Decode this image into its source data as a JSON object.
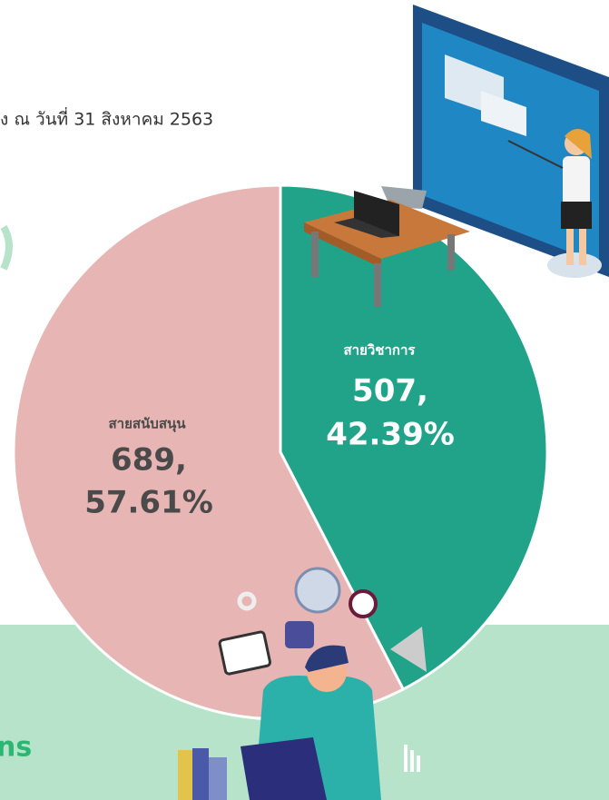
{
  "subtitle": "ง ณ วันที่ 31 สิงหาคม 2563",
  "footer_text": "ns",
  "chart_data": {
    "type": "pie",
    "categories": [
      "สายวิชาการ",
      "สายสนับสนุน"
    ],
    "values": [
      507,
      689
    ],
    "value_labels": [
      "507,",
      "689,"
    ],
    "percent_labels": [
      "42.39%",
      "57.61%"
    ],
    "colors": [
      "#21a38a",
      "#e6b5b4"
    ]
  }
}
